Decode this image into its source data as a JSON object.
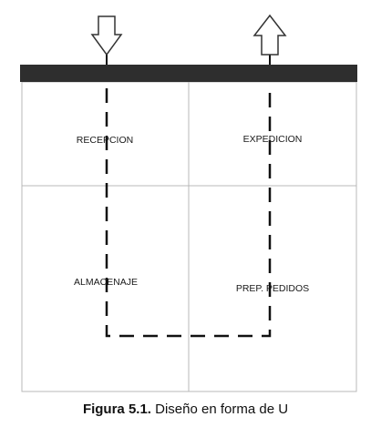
{
  "diagram": {
    "zones": {
      "recepcion": "RECEPCION",
      "expedicion": "EXPEDICION",
      "almacenaje": "ALMACENAJE",
      "prep_pedidos": "PREP. PEDIDOS"
    },
    "colors": {
      "dock_bar": "#2e2e2e",
      "grid_line": "#b9b9b9",
      "flow_path": "#111111",
      "arrow_fill": "#ffffff",
      "arrow_stroke": "#333333"
    },
    "icons": {
      "inbound": "arrow-down-icon",
      "outbound": "arrow-up-icon"
    }
  },
  "caption": {
    "number": "Figura 5.1.",
    "text": " Diseño en forma de U"
  }
}
